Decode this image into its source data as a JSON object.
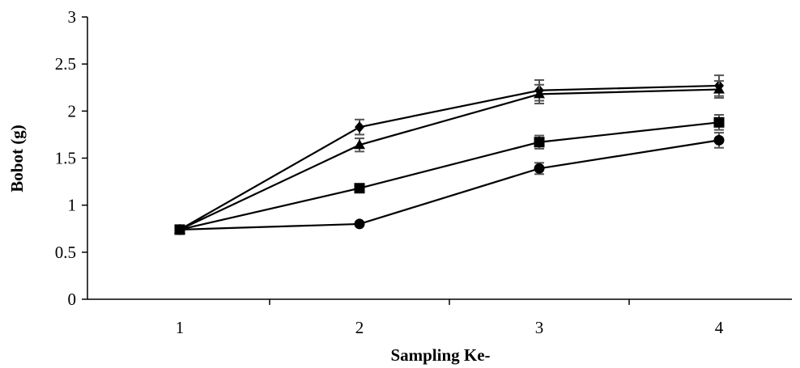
{
  "chart_data": {
    "type": "line",
    "title": "",
    "xlabel": "Sampling Ke-",
    "ylabel": "Bobot (g)",
    "categories": [
      "1",
      "2",
      "3",
      "4"
    ],
    "x": [
      1,
      2,
      3,
      4
    ],
    "ylim": [
      0,
      3
    ],
    "yticks": [
      "0",
      "0.5",
      "1",
      "1.5",
      "2",
      "2.5",
      "3"
    ],
    "grid": false,
    "legend": "none",
    "line_color": "#000000",
    "series": [
      {
        "marker": "diamond",
        "values": [
          0.74,
          1.83,
          2.22,
          2.27
        ],
        "errors": [
          0.01,
          0.08,
          0.11,
          0.11
        ]
      },
      {
        "marker": "triangle",
        "values": [
          0.74,
          1.64,
          2.18,
          2.23
        ],
        "errors": [
          0.01,
          0.07,
          0.1,
          0.09
        ]
      },
      {
        "marker": "square",
        "values": [
          0.74,
          1.18,
          1.67,
          1.88
        ],
        "errors": [
          0.01,
          0.03,
          0.07,
          0.08
        ]
      },
      {
        "marker": "circle",
        "values": [
          0.74,
          0.8,
          1.39,
          1.69
        ],
        "errors": [
          0.01,
          0.02,
          0.06,
          0.08
        ]
      }
    ]
  }
}
